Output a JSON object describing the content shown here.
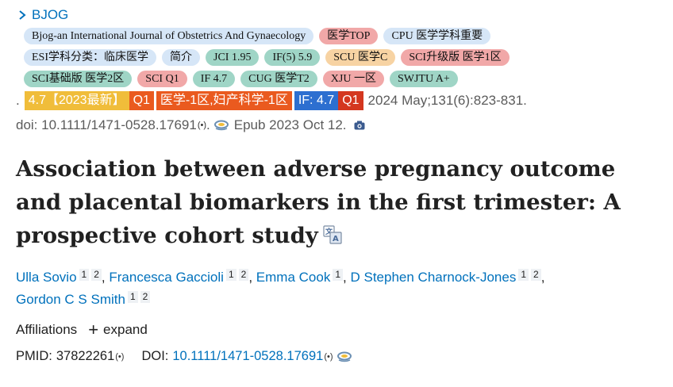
{
  "journal": {
    "name": "BJOG"
  },
  "tag_rows": [
    [
      {
        "text": "Bjog-an International Journal of Obstetrics And Gynaecology",
        "color": "blue"
      },
      {
        "text": "医学TOP",
        "color": "red"
      },
      {
        "text": "CPU 医学学科重要",
        "color": "blue"
      }
    ],
    [
      {
        "text": "ESI学科分类：临床医学",
        "color": "blue"
      },
      {
        "text": "简介",
        "color": "blue"
      },
      {
        "text": "JCI 1.95",
        "color": "green"
      },
      {
        "text": "IF(5) 5.9",
        "color": "green"
      },
      {
        "text": "SCU 医学C",
        "color": "orange"
      },
      {
        "text": "SCI升级版 医学1区",
        "color": "red"
      }
    ],
    [
      {
        "text": "SCI基础版 医学2区",
        "color": "green"
      },
      {
        "text": "SCI Q1",
        "color": "red"
      },
      {
        "text": "IF 4.7",
        "color": "green"
      },
      {
        "text": "CUG 医学T2",
        "color": "green"
      },
      {
        "text": "XJU 一区",
        "color": "red"
      },
      {
        "text": "SWJTU A+",
        "color": "green"
      }
    ]
  ],
  "citation": {
    "dot": ".",
    "badges": [
      {
        "text": "4.7【2023最新】",
        "color": "yellow"
      },
      {
        "text": "Q1",
        "color": "orangered"
      },
      {
        "text": "医学-1区,妇产科学-1区",
        "color": "orangered"
      },
      {
        "text": "IF: 4.7",
        "color": "blue2"
      },
      {
        "text": "Q1",
        "color": "red2"
      }
    ],
    "text": "2024 May;131(6):823-831.",
    "doi_text": "doi: 10.1111/1471-0528.17691",
    "epub": "Epub 2023 Oct 12."
  },
  "article": {
    "title": "Association between adverse pregnancy outcome and placental biomarkers in the first trimester: A prospective cohort study"
  },
  "authors": [
    {
      "name": "Ulla Sovio",
      "affs": [
        "1",
        "2"
      ],
      "sep": ","
    },
    {
      "name": "Francesca Gaccioli",
      "affs": [
        "1",
        "2"
      ],
      "sep": ","
    },
    {
      "name": "Emma Cook",
      "affs": [
        "1"
      ],
      "sep": ","
    },
    {
      "name": "D Stephen Charnock-Jones",
      "affs": [
        "1",
        "2"
      ],
      "sep": ","
    },
    {
      "name": "Gordon C S Smith",
      "affs": [
        "1",
        "2"
      ],
      "sep": ""
    }
  ],
  "affiliations": {
    "label": "Affiliations",
    "expand_label": "expand",
    "plus": "+"
  },
  "ids": {
    "pmid_label": "PMID:",
    "pmid": "37822261",
    "doi_label": "DOI:",
    "doi": "10.1111/1471-0528.17691"
  },
  "icons": {
    "broadcast": "(•)",
    "colors": {
      "link": "#0071bc"
    }
  }
}
